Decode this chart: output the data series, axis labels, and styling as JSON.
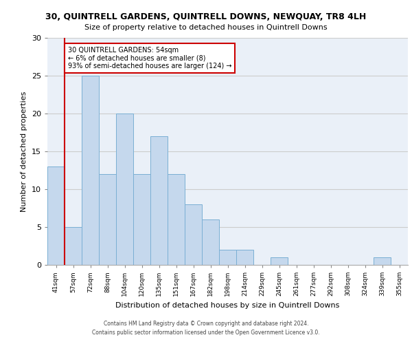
{
  "title1": "30, QUINTRELL GARDENS, QUINTRELL DOWNS, NEWQUAY, TR8 4LH",
  "title2": "Size of property relative to detached houses in Quintrell Downs",
  "xlabel": "Distribution of detached houses by size in Quintrell Downs",
  "ylabel": "Number of detached properties",
  "categories": [
    "41sqm",
    "57sqm",
    "72sqm",
    "88sqm",
    "104sqm",
    "120sqm",
    "135sqm",
    "151sqm",
    "167sqm",
    "182sqm",
    "198sqm",
    "214sqm",
    "229sqm",
    "245sqm",
    "261sqm",
    "277sqm",
    "292sqm",
    "308sqm",
    "324sqm",
    "339sqm",
    "355sqm"
  ],
  "values": [
    13,
    5,
    25,
    12,
    20,
    12,
    17,
    12,
    8,
    6,
    2,
    2,
    0,
    1,
    0,
    0,
    0,
    0,
    0,
    1,
    0
  ],
  "bar_color": "#c5d8ed",
  "bar_edge_color": "#7aafd4",
  "vline_color": "#cc0000",
  "annotation_text": "30 QUINTRELL GARDENS: 54sqm\n← 6% of detached houses are smaller (8)\n93% of semi-detached houses are larger (124) →",
  "annotation_box_color": "#ffffff",
  "annotation_box_edge": "#cc0000",
  "ylim": [
    0,
    30
  ],
  "yticks": [
    0,
    5,
    10,
    15,
    20,
    25,
    30
  ],
  "grid_color": "#cccccc",
  "bg_color": "#eaf0f8",
  "footer1": "Contains HM Land Registry data © Crown copyright and database right 2024.",
  "footer2": "Contains public sector information licensed under the Open Government Licence v3.0."
}
